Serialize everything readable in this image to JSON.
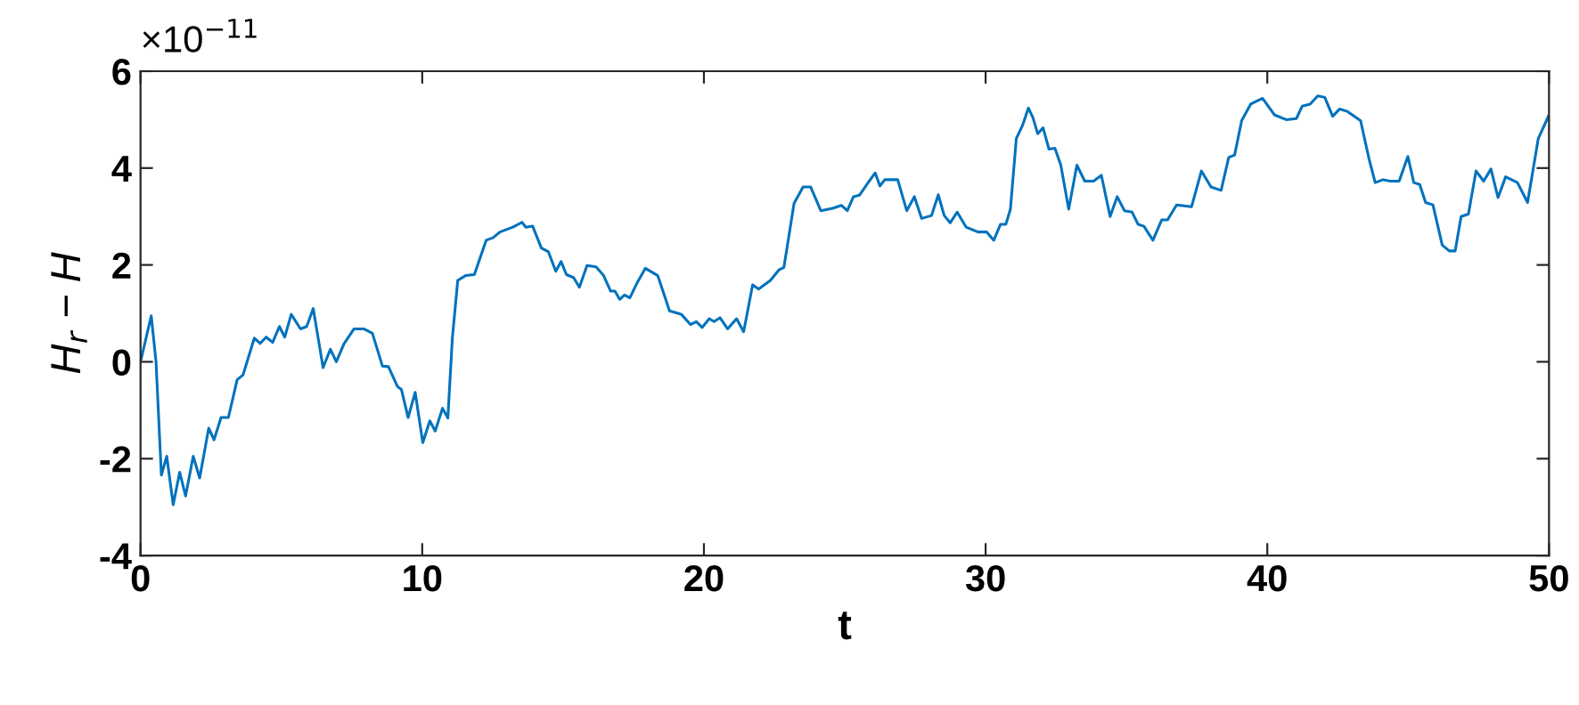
{
  "chart_data": {
    "type": "line",
    "xlabel": "t",
    "ylabel": "H$_{r}$ − H",
    "annotations": [
      "×10$^{−11}$"
    ],
    "xlim": [
      0,
      50
    ],
    "xticks": [
      0,
      10,
      20,
      30,
      40,
      50
    ],
    "ylim": [
      -4,
      6
    ],
    "yticks": [
      -4,
      -2,
      0,
      2,
      4,
      6
    ],
    "grid": false,
    "legend": false,
    "marker": "none",
    "line_style": "solid",
    "series": [
      {
        "color": "#0072bd",
        "x": [
          0,
          0.38,
          0.55,
          0.74,
          0.93,
          1.16,
          1.39,
          1.6,
          1.87,
          2.1,
          2.42,
          2.61,
          2.86,
          3.12,
          3.43,
          3.64,
          4.04,
          4.25,
          4.46,
          4.69,
          4.93,
          5.12,
          5.35,
          5.68,
          5.9,
          6.13,
          6.48,
          6.74,
          6.95,
          7.22,
          7.58,
          7.92,
          8.23,
          8.59,
          8.8,
          9.12,
          9.26,
          9.5,
          9.75,
          10.02,
          10.27,
          10.46,
          10.72,
          10.91,
          11.07,
          11.26,
          11.54,
          11.85,
          12.27,
          12.51,
          12.76,
          13.22,
          13.54,
          13.68,
          13.92,
          14.23,
          14.48,
          14.74,
          14.93,
          15.12,
          15.37,
          15.58,
          15.85,
          16.17,
          16.44,
          16.69,
          16.84,
          17.01,
          17.18,
          17.37,
          17.62,
          17.92,
          18.36,
          18.78,
          19.2,
          19.52,
          19.73,
          19.94,
          20.19,
          20.36,
          20.57,
          20.84,
          21.16,
          21.41,
          21.73,
          21.94,
          22.36,
          22.67,
          22.84,
          23.2,
          23.52,
          23.79,
          24.15,
          24.57,
          24.88,
          25.09,
          25.31,
          25.52,
          25.83,
          26.08,
          26.25,
          26.42,
          26.88,
          27.2,
          27.47,
          27.73,
          28.08,
          28.32,
          28.53,
          28.74,
          28.99,
          29.31,
          29.73,
          30.04,
          30.29,
          30.53,
          30.72,
          30.88,
          31.09,
          31.31,
          31.52,
          31.68,
          31.85,
          32.04,
          32.25,
          32.46,
          32.67,
          32.95,
          33.24,
          33.52,
          33.83,
          34.11,
          34.42,
          34.67,
          34.93,
          35.2,
          35.41,
          35.62,
          35.94,
          36.25,
          36.46,
          36.78,
          37.31,
          37.66,
          38.0,
          38.36,
          38.63,
          38.84,
          39.09,
          39.41,
          39.83,
          40.25,
          40.67,
          41.03,
          41.24,
          41.52,
          41.79,
          42.04,
          42.32,
          42.57,
          42.84,
          43.31,
          43.62,
          43.83,
          44.11,
          44.36,
          44.68,
          44.99,
          45.2,
          45.41,
          45.62,
          45.88,
          46.21,
          46.46,
          46.67,
          46.88,
          47.14,
          47.41,
          47.68,
          47.94,
          48.19,
          48.46,
          48.88,
          49.24,
          49.62,
          49.98
        ],
        "values": [
          0,
          0.95,
          0,
          -2.34,
          -1.95,
          -2.95,
          -2.28,
          -2.77,
          -1.95,
          -2.4,
          -1.37,
          -1.61,
          -1.15,
          -1.15,
          -0.37,
          -0.27,
          0.49,
          0.38,
          0.51,
          0.4,
          0.73,
          0.51,
          0.98,
          0.68,
          0.73,
          1.1,
          -0.12,
          0.26,
          0,
          0.37,
          0.68,
          0.68,
          0.59,
          -0.09,
          -0.1,
          -0.51,
          -0.57,
          -1.15,
          -0.63,
          -1.67,
          -1.22,
          -1.43,
          -0.96,
          -1.16,
          0.49,
          1.68,
          1.78,
          1.8,
          2.51,
          2.56,
          2.68,
          2.78,
          2.88,
          2.78,
          2.8,
          2.35,
          2.27,
          1.87,
          2.07,
          1.8,
          1.74,
          1.54,
          1.99,
          1.96,
          1.78,
          1.46,
          1.46,
          1.29,
          1.38,
          1.32,
          1.62,
          1.93,
          1.78,
          1.05,
          0.98,
          0.77,
          0.83,
          0.71,
          0.89,
          0.83,
          0.91,
          0.68,
          0.89,
          0.62,
          1.59,
          1.5,
          1.68,
          1.9,
          1.95,
          3.27,
          3.61,
          3.61,
          3.12,
          3.17,
          3.23,
          3.12,
          3.41,
          3.44,
          3.7,
          3.9,
          3.63,
          3.76,
          3.76,
          3.12,
          3.41,
          2.96,
          3.02,
          3.45,
          3.02,
          2.87,
          3.09,
          2.78,
          2.68,
          2.68,
          2.51,
          2.84,
          2.84,
          3.15,
          4.61,
          4.88,
          5.24,
          5.04,
          4.71,
          4.83,
          4.39,
          4.41,
          4.06,
          3.15,
          4.06,
          3.73,
          3.73,
          3.85,
          3.0,
          3.41,
          3.12,
          3.09,
          2.84,
          2.8,
          2.51,
          2.93,
          2.93,
          3.24,
          3.2,
          3.94,
          3.61,
          3.54,
          4.22,
          4.27,
          4.98,
          5.32,
          5.44,
          5.1,
          5.0,
          5.02,
          5.28,
          5.32,
          5.49,
          5.46,
          5.07,
          5.22,
          5.17,
          4.98,
          4.17,
          3.7,
          3.76,
          3.73,
          3.73,
          4.24,
          3.7,
          3.66,
          3.29,
          3.24,
          2.41,
          2.29,
          2.29,
          3.0,
          3.05,
          3.94,
          3.73,
          3.98,
          3.39,
          3.82,
          3.7,
          3.29,
          4.61,
          5.07
        ]
      }
    ]
  }
}
